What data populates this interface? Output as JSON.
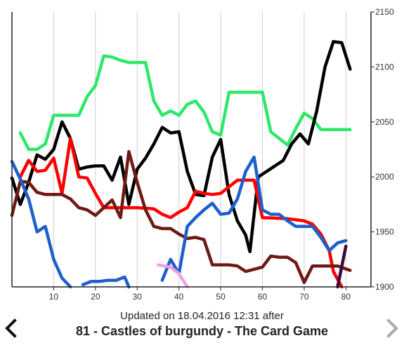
{
  "caption": {
    "subtitle": "Updated on 18.04.2016 12:31 after",
    "title": "81 - Castles of burgundy - The Card Game"
  },
  "navigation": {
    "prev_icon": "chevron-left-icon",
    "next_icon": "chevron-right-icon",
    "prev_color": "#111111",
    "next_color": "#aaaaaa"
  },
  "chart_data": {
    "type": "line",
    "title": "",
    "xlabel": "",
    "ylabel": "",
    "xlim": [
      0,
      86
    ],
    "ylim": [
      1900,
      2150
    ],
    "x_ticks": [
      10,
      20,
      30,
      40,
      50,
      60,
      70,
      80
    ],
    "y_ticks": [
      1900,
      1950,
      2000,
      2050,
      2100,
      2150
    ],
    "y_axis_position": "right",
    "grid": "vertical",
    "legend": "none",
    "series": [
      {
        "color": "#2ee86a",
        "points": [
          [
            2,
            2040
          ],
          [
            4,
            2025
          ],
          [
            6,
            2025
          ],
          [
            8,
            2030
          ],
          [
            10,
            2056
          ],
          [
            14,
            2056
          ],
          [
            16,
            2056
          ],
          [
            18,
            2073
          ],
          [
            20,
            2083
          ],
          [
            22,
            2110
          ],
          [
            24,
            2109
          ],
          [
            26,
            2106
          ],
          [
            28,
            2104
          ],
          [
            32,
            2104
          ],
          [
            34,
            2069
          ],
          [
            36,
            2056
          ],
          [
            38,
            2060
          ],
          [
            40,
            2056
          ],
          [
            42,
            2066
          ],
          [
            44,
            2069
          ],
          [
            46,
            2059
          ],
          [
            48,
            2041
          ],
          [
            50,
            2038
          ],
          [
            52,
            2077
          ],
          [
            60,
            2077
          ],
          [
            62,
            2041
          ],
          [
            66,
            2029
          ],
          [
            68,
            2044
          ],
          [
            70,
            2058
          ],
          [
            72,
            2053
          ],
          [
            74,
            2043
          ],
          [
            81,
            2043
          ]
        ]
      },
      {
        "color": "#000000",
        "points": [
          [
            0,
            1999
          ],
          [
            2,
            1975
          ],
          [
            4,
            1995
          ],
          [
            6,
            2020
          ],
          [
            8,
            2016
          ],
          [
            10,
            2025
          ],
          [
            12,
            2050
          ],
          [
            14,
            2035
          ],
          [
            16,
            2007
          ],
          [
            18,
            2009
          ],
          [
            20,
            2010
          ],
          [
            22,
            2010
          ],
          [
            24,
            1997
          ],
          [
            26,
            2018
          ],
          [
            28,
            1975
          ],
          [
            30,
            2007
          ],
          [
            32,
            2017
          ],
          [
            34,
            2030
          ],
          [
            36,
            2045
          ],
          [
            38,
            2040
          ],
          [
            40,
            2041
          ],
          [
            42,
            2005
          ],
          [
            44,
            1984
          ],
          [
            46,
            1983
          ],
          [
            48,
            2018
          ],
          [
            50,
            2034
          ],
          [
            52,
            1984
          ],
          [
            54,
            1960
          ],
          [
            56,
            1947
          ],
          [
            57,
            1932
          ],
          [
            59,
            2000
          ],
          [
            61,
            2005
          ],
          [
            63,
            2010
          ],
          [
            65,
            2015
          ],
          [
            67,
            2030
          ],
          [
            69,
            2039
          ],
          [
            71,
            2030
          ],
          [
            73,
            2060
          ],
          [
            75,
            2100
          ],
          [
            77,
            2123
          ],
          [
            79,
            2122
          ],
          [
            81,
            2098
          ]
        ]
      },
      {
        "color": "#ff0000",
        "points": [
          [
            2,
            2000
          ],
          [
            4,
            2015
          ],
          [
            6,
            2005
          ],
          [
            8,
            2006
          ],
          [
            10,
            2017
          ],
          [
            12,
            1985
          ],
          [
            14,
            2035
          ],
          [
            16,
            2000
          ],
          [
            18,
            1999
          ],
          [
            20,
            1985
          ],
          [
            22,
            1972
          ],
          [
            30,
            1972
          ],
          [
            34,
            1971
          ],
          [
            36,
            1966
          ],
          [
            38,
            1963
          ],
          [
            40,
            1968
          ],
          [
            42,
            1972
          ],
          [
            44,
            1987
          ],
          [
            46,
            1985
          ],
          [
            48,
            1984
          ],
          [
            50,
            1985
          ],
          [
            52,
            1991
          ],
          [
            54,
            1997
          ],
          [
            58,
            1997
          ],
          [
            60,
            1963
          ],
          [
            66,
            1962
          ],
          [
            70,
            1960
          ],
          [
            72,
            1957
          ],
          [
            74,
            1948
          ],
          [
            76,
            1933
          ],
          [
            77,
            1914
          ],
          [
            79,
            1900
          ]
        ]
      },
      {
        "color": "#6e1a14",
        "points": [
          [
            0,
            1965
          ],
          [
            2,
            1996
          ],
          [
            4,
            1995
          ],
          [
            6,
            1986
          ],
          [
            8,
            1984
          ],
          [
            10,
            1984
          ],
          [
            12,
            1984
          ],
          [
            14,
            1980
          ],
          [
            16,
            1972
          ],
          [
            18,
            1970
          ],
          [
            20,
            1965
          ],
          [
            22,
            1972
          ],
          [
            24,
            1979
          ],
          [
            26,
            1963
          ],
          [
            28,
            2023
          ],
          [
            30,
            1995
          ],
          [
            32,
            1970
          ],
          [
            34,
            1955
          ],
          [
            36,
            1953
          ],
          [
            38,
            1953
          ],
          [
            40,
            1948
          ],
          [
            42,
            1944
          ],
          [
            44,
            1945
          ],
          [
            46,
            1943
          ],
          [
            48,
            1920
          ],
          [
            50,
            1920
          ],
          [
            52,
            1920
          ],
          [
            54,
            1919
          ],
          [
            56,
            1914
          ],
          [
            58,
            1916
          ],
          [
            60,
            1918
          ],
          [
            62,
            1928
          ],
          [
            64,
            1927
          ],
          [
            66,
            1927
          ],
          [
            68,
            1922
          ],
          [
            70,
            1904
          ],
          [
            72,
            1919
          ],
          [
            78,
            1919
          ],
          [
            81,
            1915
          ]
        ]
      },
      {
        "color": "#1d5fcc",
        "points": [
          [
            0,
            2014
          ],
          [
            2,
            1998
          ],
          [
            4,
            1980
          ],
          [
            6,
            1950
          ],
          [
            8,
            1955
          ],
          [
            10,
            1925
          ],
          [
            12,
            1908
          ],
          [
            14,
            1900
          ]
        ]
      },
      {
        "color": "#1d5fcc",
        "points": [
          [
            17,
            1902
          ],
          [
            19,
            1905
          ],
          [
            21,
            1905
          ],
          [
            23,
            1906
          ],
          [
            25,
            1906
          ],
          [
            27,
            1909
          ],
          [
            28,
            1900
          ]
        ]
      },
      {
        "color": "#1d5fcc",
        "points": [
          [
            36,
            1906
          ],
          [
            38,
            1925
          ],
          [
            40,
            1912
          ],
          [
            42,
            1955
          ],
          [
            44,
            1963
          ],
          [
            46,
            1970
          ],
          [
            48,
            1976
          ],
          [
            50,
            1966
          ],
          [
            52,
            1967
          ],
          [
            54,
            1980
          ],
          [
            56,
            2005
          ],
          [
            58,
            2018
          ],
          [
            60,
            1970
          ],
          [
            62,
            1966
          ],
          [
            64,
            1966
          ],
          [
            66,
            1960
          ],
          [
            68,
            1955
          ],
          [
            72,
            1955
          ],
          [
            74,
            1945
          ],
          [
            76,
            1933
          ],
          [
            78,
            1940
          ],
          [
            80,
            1942
          ]
        ]
      },
      {
        "color": "#f0a0e6",
        "points": [
          [
            35,
            1920
          ],
          [
            38,
            1918
          ],
          [
            40,
            1912
          ],
          [
            42,
            1900
          ]
        ]
      },
      {
        "color": "#3a0c3e",
        "points": [
          [
            78,
            1900
          ],
          [
            80,
            1937
          ]
        ]
      }
    ]
  }
}
